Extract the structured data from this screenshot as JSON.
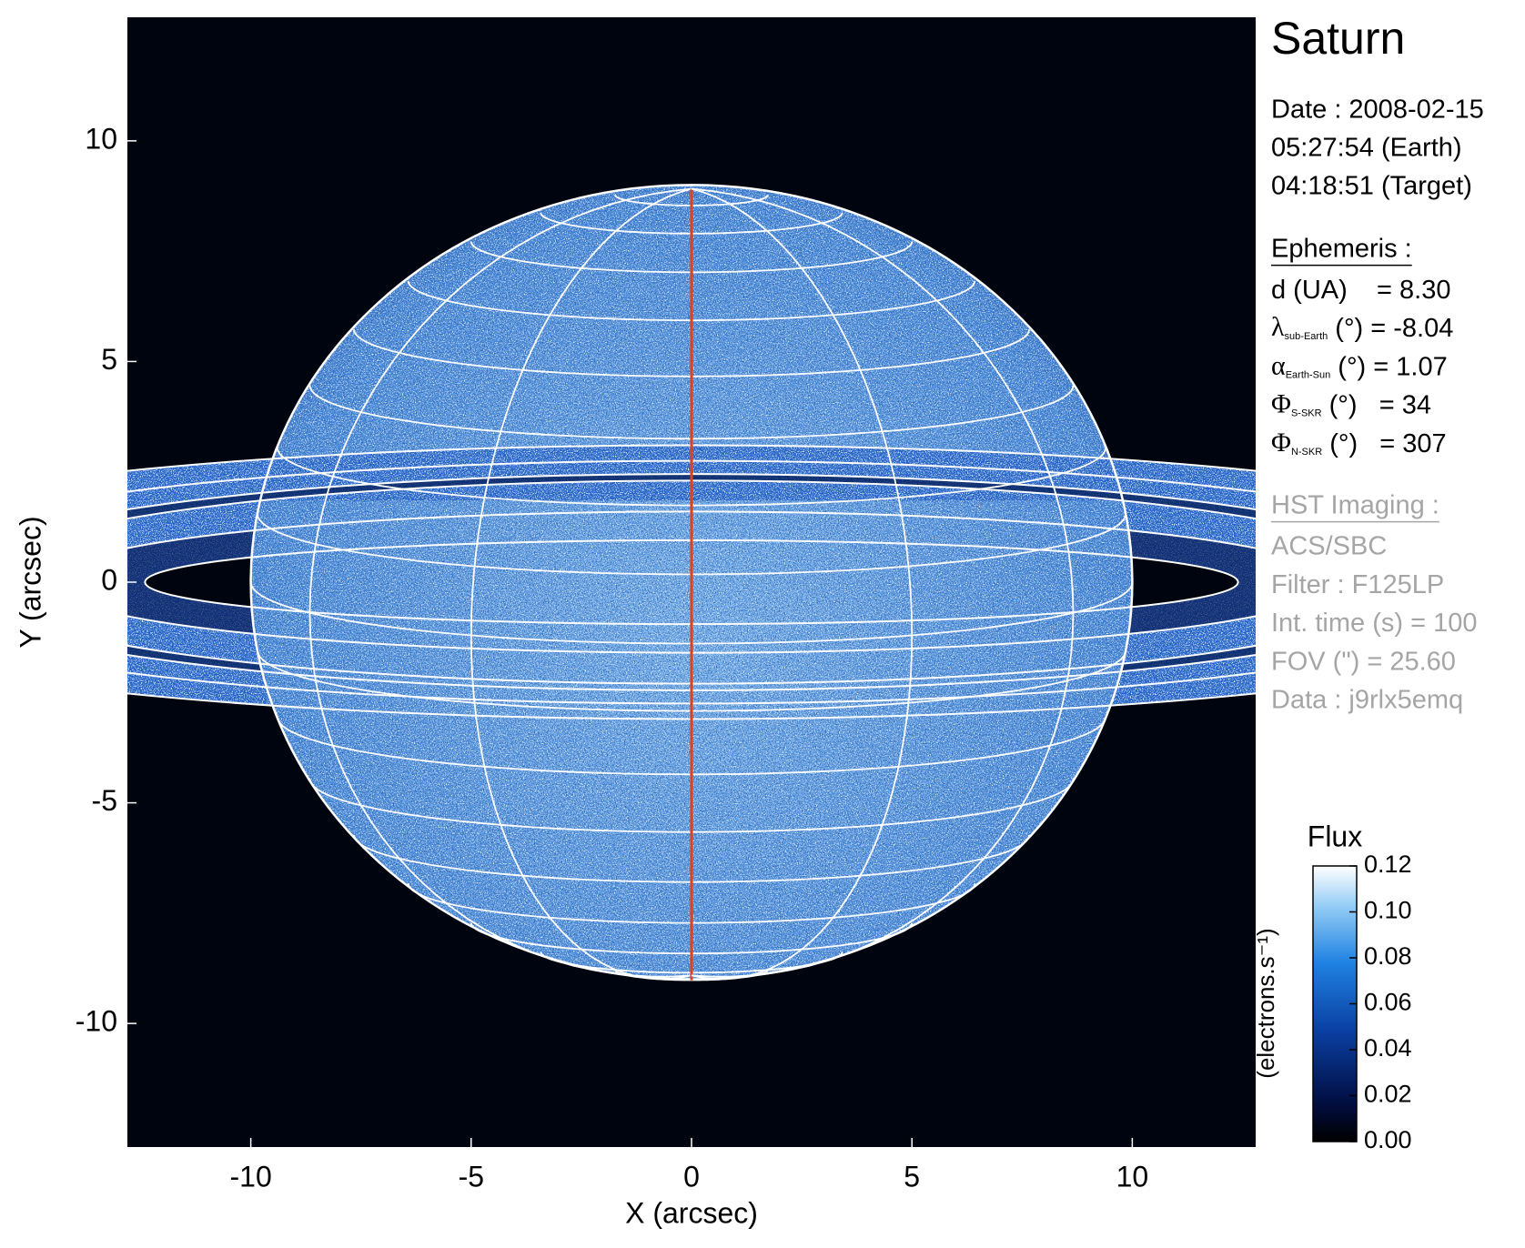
{
  "chart_data": {
    "type": "image",
    "title": "Saturn",
    "xlabel": "X (arcsec)",
    "ylabel": "Y (arcsec)",
    "xlim": [
      -12.8,
      12.8
    ],
    "ylim": [
      -12.8,
      12.8
    ],
    "xticks": [
      -10,
      -5,
      0,
      5,
      10
    ],
    "yticks": [
      -10,
      -5,
      0,
      5,
      10
    ],
    "info": {
      "date_lines": [
        "Date : 2008-02-15",
        "05:27:54 (Earth)",
        "04:18:51 (Target)"
      ],
      "ephemeris_title": "Ephemeris :",
      "ephemeris": [
        {
          "symbol": "d (UA)",
          "text": "    = 8.30"
        },
        {
          "symbol": "λ",
          "sub": "sub-Earth",
          "text": " (°) = -8.04"
        },
        {
          "symbol": "α",
          "sub": "Earth-Sun",
          "text": " (°) = 1.07"
        },
        {
          "symbol": "Φ",
          "sub": "S-SKR",
          "text": " (°)   = 34"
        },
        {
          "symbol": "Φ",
          "sub": "N-SKR",
          "text": " (°)   = 307"
        }
      ],
      "imaging_title": "HST Imaging :",
      "imaging": [
        "ACS/SBC",
        "Filter : F125LP",
        "Int. time (s) = 100",
        "FOV (\") = 25.60",
        "Data : j9rlx5emq"
      ]
    },
    "colorbar": {
      "title": "Flux",
      "label": "(electrons.s⁻¹)",
      "lim": [
        0,
        0.12
      ],
      "ticks": [
        {
          "value": 0,
          "label": "0.00"
        },
        0.02,
        0.04,
        0.06,
        0.08,
        {
          "value": 0.1,
          "label": "0.10"
        },
        0.12
      ]
    }
  }
}
